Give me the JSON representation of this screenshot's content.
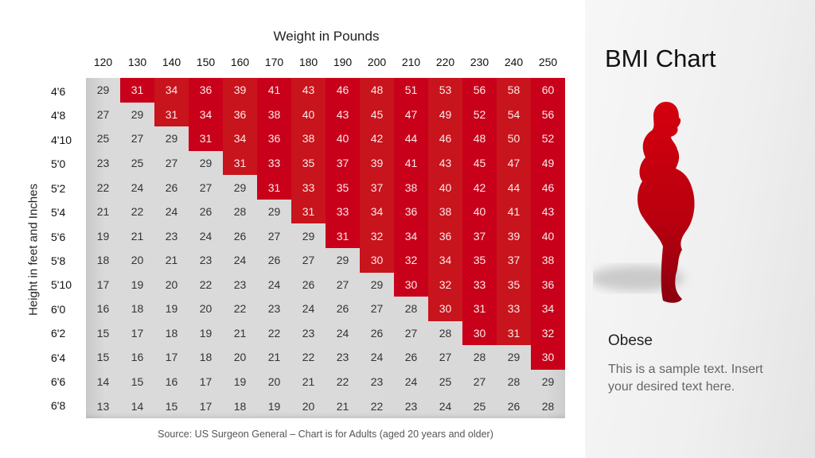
{
  "slide": {
    "title": "BMI Chart",
    "x_axis_title": "Weight in Pounds",
    "y_axis_title": "Height in feet and Inches",
    "source_note": "Source: US Surgeon General – Chart is for Adults (aged 20 years and older)",
    "side_heading": "Obese",
    "side_text": "This is a sample text. Insert your desired text here.",
    "figure_icon": "obese-person-silhouette-icon"
  },
  "colors": {
    "obese_red": "#c8141c",
    "obese_red_alt": "#c8001a",
    "normal_gray": "#d9d9d9",
    "side_panel": "#efefef"
  },
  "chart_data": {
    "type": "table",
    "title": "BMI Chart",
    "xlabel": "Weight in Pounds",
    "ylabel": "Height in feet and Inches",
    "columns": [
      "120",
      "130",
      "140",
      "150",
      "160",
      "170",
      "180",
      "190",
      "200",
      "210",
      "220",
      "230",
      "240",
      "250"
    ],
    "rows": [
      "4'6",
      "4'8",
      "4'10",
      "5'0",
      "5'2",
      "5'4",
      "5'6",
      "5'8",
      "5'10",
      "6'0",
      "6'2",
      "6'4",
      "6'6",
      "6'8"
    ],
    "values": [
      [
        29,
        31,
        34,
        36,
        39,
        41,
        43,
        46,
        48,
        51,
        53,
        56,
        58,
        60
      ],
      [
        27,
        29,
        31,
        34,
        36,
        38,
        40,
        43,
        45,
        47,
        49,
        52,
        54,
        56
      ],
      [
        25,
        27,
        29,
        31,
        34,
        36,
        38,
        40,
        42,
        44,
        46,
        48,
        50,
        52
      ],
      [
        23,
        25,
        27,
        29,
        31,
        33,
        35,
        37,
        39,
        41,
        43,
        45,
        47,
        49
      ],
      [
        22,
        24,
        26,
        27,
        29,
        31,
        33,
        35,
        37,
        38,
        40,
        42,
        44,
        46
      ],
      [
        21,
        22,
        24,
        26,
        28,
        29,
        31,
        33,
        34,
        36,
        38,
        40,
        41,
        43
      ],
      [
        19,
        21,
        23,
        24,
        26,
        27,
        29,
        31,
        32,
        34,
        36,
        37,
        39,
        40
      ],
      [
        18,
        20,
        21,
        23,
        24,
        26,
        27,
        29,
        30,
        32,
        34,
        35,
        37,
        38
      ],
      [
        17,
        19,
        20,
        22,
        23,
        24,
        26,
        27,
        29,
        30,
        32,
        33,
        35,
        36
      ],
      [
        16,
        18,
        19,
        20,
        22,
        23,
        24,
        26,
        27,
        28,
        30,
        31,
        33,
        34
      ],
      [
        15,
        17,
        18,
        19,
        21,
        22,
        23,
        24,
        26,
        27,
        28,
        30,
        31,
        32
      ],
      [
        15,
        16,
        17,
        18,
        20,
        21,
        22,
        23,
        24,
        26,
        27,
        28,
        29,
        30
      ],
      [
        14,
        15,
        16,
        17,
        19,
        20,
        21,
        22,
        23,
        24,
        25,
        27,
        28,
        29
      ],
      [
        13,
        14,
        15,
        17,
        18,
        19,
        20,
        21,
        22,
        23,
        24,
        25,
        26,
        28
      ]
    ],
    "obese_first_col": [
      1,
      2,
      3,
      4,
      5,
      6,
      7,
      8,
      9,
      10,
      11,
      13,
      14,
      14
    ],
    "highlight_rule": "Red cells = Obese (BMI >= 30, staircase region)",
    "source": "Source: US Surgeon General – Chart is for Adults (aged 20 years and older)"
  }
}
